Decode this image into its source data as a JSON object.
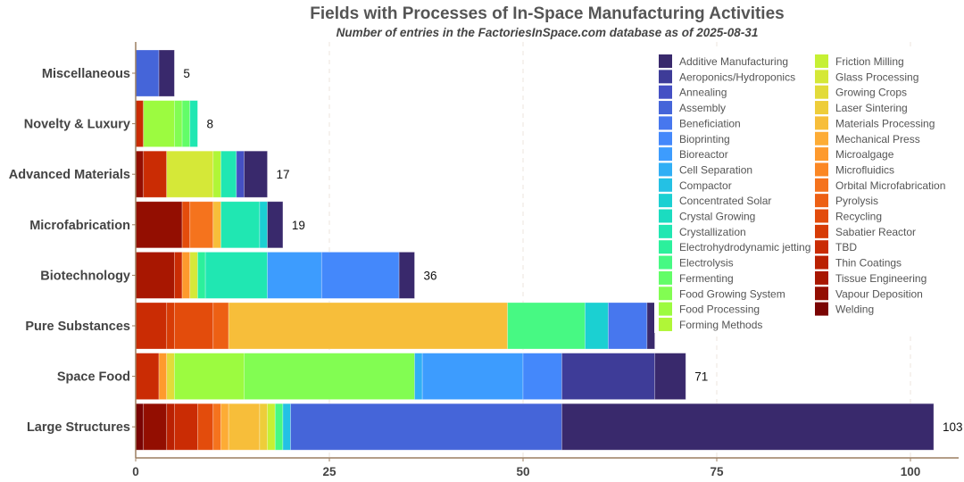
{
  "chart_data": {
    "type": "bar",
    "orientation": "horizontal",
    "stacked": true,
    "title": "Fields with Processes of In-Space Manufacturing Activities",
    "subtitle": "Number of entries in the FactoriesInSpace.com database as of 2025-08-31",
    "xlabel": "",
    "ylabel": "",
    "xlim": [
      0,
      106
    ],
    "xticks": [
      0,
      25,
      50,
      75,
      100
    ],
    "grid": "vertical dashed",
    "legend_position": "top-right",
    "categories": [
      "Miscellaneous",
      "Novelty & Luxury",
      "Advanced Materials",
      "Microfabrication",
      "Biotechnology",
      "Pure Substances",
      "Space Food",
      "Large Structures"
    ],
    "totals": [
      5,
      8,
      17,
      19,
      36,
      67,
      71,
      103
    ],
    "series": [
      {
        "name": "Additive Manufacturing",
        "color": "#39296c",
        "values": [
          2,
          0,
          3,
          2,
          2,
          1,
          4,
          48
        ]
      },
      {
        "name": "Aeroponics/Hydroponics",
        "color": "#3e3c98",
        "values": [
          0,
          0,
          0,
          0,
          0,
          0,
          12,
          0
        ]
      },
      {
        "name": "Annealing",
        "color": "#4550c4",
        "values": [
          0,
          0,
          1,
          0,
          0,
          0,
          0,
          0
        ]
      },
      {
        "name": "Assembly",
        "color": "#4565d9",
        "values": [
          3,
          0,
          0,
          0,
          0,
          0,
          0,
          35
        ]
      },
      {
        "name": "Beneficiation",
        "color": "#4777ee",
        "values": [
          0,
          0,
          0,
          0,
          0,
          5,
          0,
          0
        ]
      },
      {
        "name": "Bioprinting",
        "color": "#4488fb",
        "values": [
          0,
          0,
          0,
          0,
          10,
          0,
          5,
          0
        ]
      },
      {
        "name": "Bioreactor",
        "color": "#3d9cfe",
        "values": [
          0,
          0,
          0,
          0,
          7,
          0,
          13,
          0
        ]
      },
      {
        "name": "Cell Separation",
        "color": "#31aff5",
        "values": [
          0,
          0,
          0,
          0,
          0,
          0,
          1,
          0
        ]
      },
      {
        "name": "Compactor",
        "color": "#24c1e4",
        "values": [
          0,
          0,
          0,
          0,
          0,
          0,
          0,
          1
        ]
      },
      {
        "name": "Concentrated Solar",
        "color": "#1bd0d2",
        "values": [
          0,
          0,
          0,
          1,
          0,
          3,
          0,
          0
        ]
      },
      {
        "name": "Crystal Growing",
        "color": "#1bdcc0",
        "values": [
          0,
          0,
          0,
          0,
          0,
          0,
          0,
          0
        ]
      },
      {
        "name": "Crystallization",
        "color": "#20e7b2",
        "values": [
          0,
          1,
          2,
          5,
          8,
          0,
          0,
          0
        ]
      },
      {
        "name": "Electrohydrodynamic jetting",
        "color": "#2cf09c",
        "values": [
          0,
          0,
          0,
          0,
          1,
          0,
          0,
          0
        ]
      },
      {
        "name": "Electrolysis",
        "color": "#47f983",
        "values": [
          0,
          0,
          0,
          0,
          0,
          10,
          0,
          1
        ]
      },
      {
        "name": "Fermenting",
        "color": "#63fd68",
        "values": [
          0,
          1,
          0,
          0,
          0,
          0,
          0,
          0
        ]
      },
      {
        "name": "Food Growing System",
        "color": "#82fd52",
        "values": [
          0,
          1,
          0,
          0,
          0,
          0,
          22,
          0
        ]
      },
      {
        "name": "Food Processing",
        "color": "#9cfb40",
        "values": [
          0,
          4,
          0,
          0,
          0,
          0,
          9,
          0
        ]
      },
      {
        "name": "Forming Methods",
        "color": "#b0f637",
        "values": [
          0,
          0,
          1,
          0,
          0,
          0,
          0,
          0
        ]
      },
      {
        "name": "Friction Milling",
        "color": "#c6f034",
        "values": [
          0,
          0,
          0,
          0,
          0,
          0,
          0,
          1
        ]
      },
      {
        "name": "Glass Processing",
        "color": "#d5e838",
        "values": [
          0,
          0,
          6,
          0,
          1,
          0,
          0,
          0
        ]
      },
      {
        "name": "Growing Crops",
        "color": "#e2db3a",
        "values": [
          0,
          0,
          0,
          0,
          0,
          0,
          1,
          0
        ]
      },
      {
        "name": "Laser Sintering",
        "color": "#eecd3a",
        "values": [
          0,
          0,
          0,
          0,
          0,
          0,
          0,
          1
        ]
      },
      {
        "name": "Materials Processing",
        "color": "#f7be3a",
        "values": [
          0,
          0,
          0,
          1,
          0,
          36,
          0,
          4
        ]
      },
      {
        "name": "Mechanical Press",
        "color": "#fdac35",
        "values": [
          0,
          0,
          0,
          0,
          0,
          0,
          0,
          1
        ]
      },
      {
        "name": "Microalgage",
        "color": "#fe9a2d",
        "values": [
          0,
          0,
          0,
          0,
          1,
          0,
          1,
          0
        ]
      },
      {
        "name": "Microfluidics",
        "color": "#fb8724",
        "values": [
          0,
          0,
          0,
          0,
          0,
          0,
          0,
          0
        ]
      },
      {
        "name": "Orbital Microfabrication",
        "color": "#f5731d",
        "values": [
          0,
          0,
          0,
          3,
          0,
          0,
          0,
          1
        ]
      },
      {
        "name": "Pyrolysis",
        "color": "#ed6014",
        "values": [
          0,
          0,
          0,
          0,
          0,
          2,
          0,
          0
        ]
      },
      {
        "name": "Recycling",
        "color": "#e34c0c",
        "values": [
          0,
          0,
          0,
          1,
          0,
          5,
          0,
          2
        ]
      },
      {
        "name": "Sabatier Reactor",
        "color": "#d73c06",
        "values": [
          0,
          0,
          0,
          0,
          0,
          1,
          0,
          0
        ]
      },
      {
        "name": "TBD",
        "color": "#ca2c04",
        "values": [
          0,
          1,
          3,
          0,
          1,
          4,
          3,
          3
        ]
      },
      {
        "name": "Thin Coatings",
        "color": "#ba2102",
        "values": [
          0,
          0,
          0,
          0,
          0,
          0,
          0,
          1
        ]
      },
      {
        "name": "Tissue Engineering",
        "color": "#a81701",
        "values": [
          0,
          0,
          0,
          0,
          5,
          0,
          0,
          0
        ]
      },
      {
        "name": "Vapour Deposition",
        "color": "#930e01",
        "values": [
          0,
          0,
          1,
          6,
          0,
          0,
          0,
          3
        ]
      },
      {
        "name": "Welding",
        "color": "#7a0403",
        "values": [
          0,
          0,
          0,
          0,
          0,
          0,
          0,
          1
        ]
      }
    ]
  }
}
